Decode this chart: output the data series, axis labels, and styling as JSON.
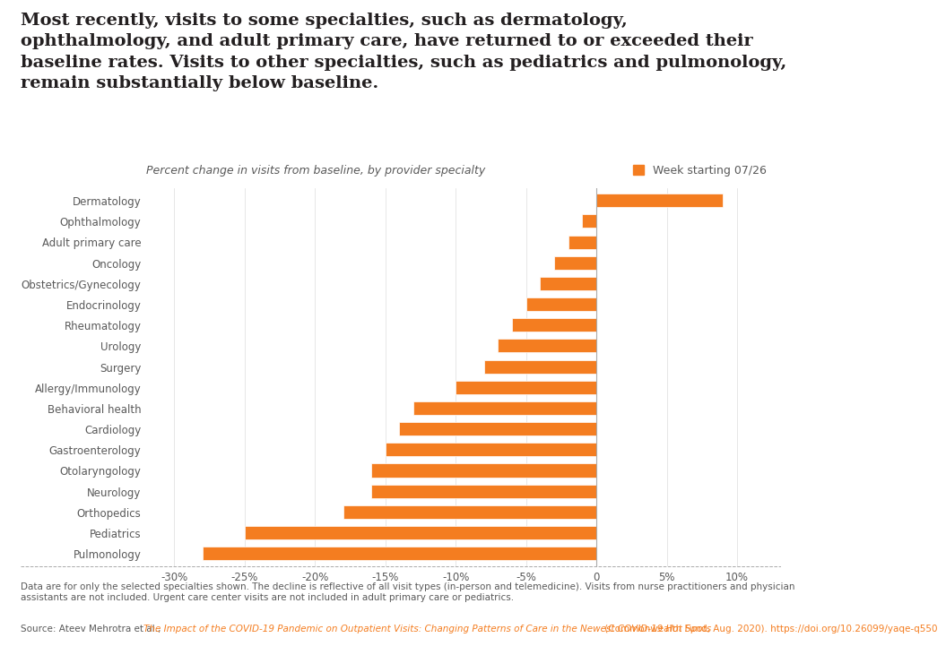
{
  "title": "Most recently, visits to some specialties, such as dermatology,\nophthalmology, and adult primary care, have returned to or exceeded their\nbaseline rates. Visits to other specialties, such as pediatrics and pulmonology,\nremain substantially below baseline.",
  "subtitle": "Percent change in visits from baseline, by provider specialty",
  "legend_label": "Week starting 07/26",
  "categories": [
    "Dermatology",
    "Ophthalmology",
    "Adult primary care",
    "Oncology",
    "Obstetrics/Gynecology",
    "Endocrinology",
    "Rheumatology",
    "Urology",
    "Surgery",
    "Allergy/Immunology",
    "Behavioral health",
    "Cardiology",
    "Gastroenterology",
    "Otolaryngology",
    "Neurology",
    "Orthopedics",
    "Pediatrics",
    "Pulmonology"
  ],
  "values": [
    9,
    -1,
    -2,
    -3,
    -4,
    -5,
    -6,
    -7,
    -8,
    -10,
    -13,
    -14,
    -15,
    -16,
    -16,
    -18,
    -25,
    -28
  ],
  "bar_color": "#f47d20",
  "title_color": "#231f20",
  "title_fontsize": 14,
  "subtitle_fontsize": 9,
  "subtitle_color": "#595959",
  "axis_color": "#595959",
  "tick_color": "#595959",
  "xlim": [
    -32,
    12
  ],
  "xticks": [
    -30,
    -25,
    -20,
    -15,
    -10,
    -5,
    0,
    5,
    10
  ],
  "xtick_labels": [
    "-30%",
    "-25%",
    "-20%",
    "-15%",
    "-10%",
    "-5%",
    "0",
    "5%",
    "10%"
  ],
  "footnote1": "Data are for only the selected specialties shown. The decline is reflective of all visit types (in-person and telemedicine). Visits from nurse practitioners and physician\nassistants are not included. Urgent care center visits are not included in adult primary care or pediatrics.",
  "source_text": "Source: Ateev Mehrotra et al., ",
  "source_italic": "The Impact of the COVID-19 Pandemic on Outpatient Visits: Changing Patterns of Care in the Newest COVID-19 Hot Spots",
  "source_url": " (Commonwealth Fund, Aug. 2020). https://doi.org/10.26099/yaqe-q550",
  "source_color": "#595959",
  "source_link_color": "#f47d20",
  "orange_line_color": "#f47d20",
  "background_color": "#ffffff"
}
